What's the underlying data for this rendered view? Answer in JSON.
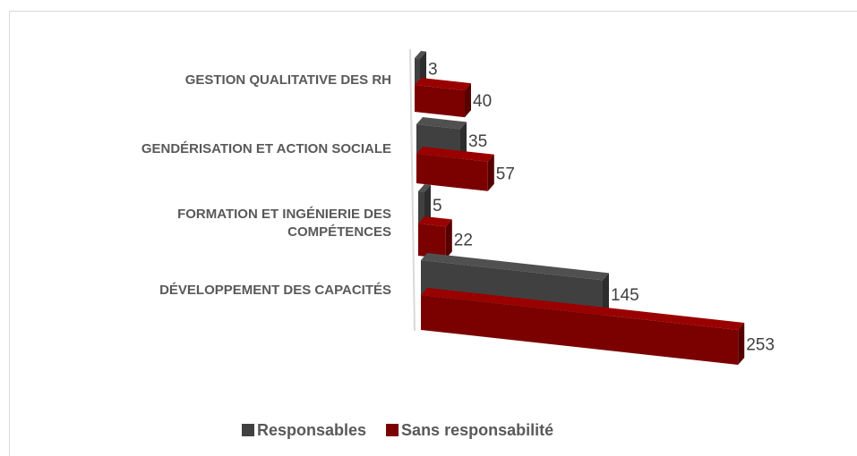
{
  "chart_data": {
    "type": "bar3d_horizontal",
    "categories": [
      "GESTION QUALITATIVE DES RH",
      "GENDÉRISATION ET ACTION SOCIALE",
      "FORMATION ET INGÉNIERIE DES COMPÉTENCES",
      "DÉVELOPPEMENT DES CAPACITÉS"
    ],
    "series": [
      {
        "name": "Responsables",
        "color": "#404040",
        "values": [
          3,
          35,
          5,
          145
        ]
      },
      {
        "name": "Sans responsabilité",
        "color": "#7b0000",
        "values": [
          40,
          57,
          22,
          253
        ]
      }
    ]
  }
}
